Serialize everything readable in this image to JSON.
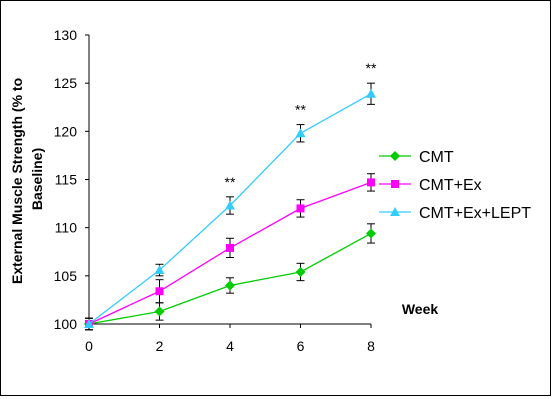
{
  "chart_data": {
    "type": "line",
    "title": "",
    "xlabel": "Week",
    "ylabel": "External Muscle Strength (% to Baseline)",
    "ylabel_lines": [
      "External Muscle Strength (% to",
      "Baseline)"
    ],
    "x": [
      0,
      2,
      4,
      6,
      8
    ],
    "x_ticks": [
      "0",
      "2",
      "4",
      "6",
      "8"
    ],
    "y_ticks": [
      "100",
      "105",
      "110",
      "115",
      "120",
      "125",
      "130"
    ],
    "xlim": [
      0,
      8
    ],
    "ylim": [
      100,
      130
    ],
    "grid": false,
    "legend_position": "right",
    "series": [
      {
        "name": "CMT",
        "color": "#00cc00",
        "marker": "diamond",
        "values": [
          100,
          101.3,
          104.0,
          105.4,
          109.4
        ],
        "errors": [
          0.6,
          0.9,
          0.8,
          0.9,
          1.0
        ]
      },
      {
        "name": "CMT+Ex",
        "color": "#ff00ff",
        "marker": "square",
        "values": [
          100,
          103.4,
          107.9,
          112.0,
          114.7
        ],
        "errors": [
          0.6,
          1.2,
          1.0,
          0.9,
          0.9
        ]
      },
      {
        "name": "CMT+Ex+LEPT",
        "color": "#33ccff",
        "marker": "triangle",
        "values": [
          100,
          105.6,
          112.3,
          119.8,
          123.9
        ],
        "errors": [
          0.6,
          0.6,
          0.9,
          0.9,
          1.1
        ]
      }
    ],
    "annotations": [
      {
        "x": 4,
        "text": "**"
      },
      {
        "x": 6,
        "text": "**"
      },
      {
        "x": 8,
        "text": "**"
      }
    ]
  }
}
